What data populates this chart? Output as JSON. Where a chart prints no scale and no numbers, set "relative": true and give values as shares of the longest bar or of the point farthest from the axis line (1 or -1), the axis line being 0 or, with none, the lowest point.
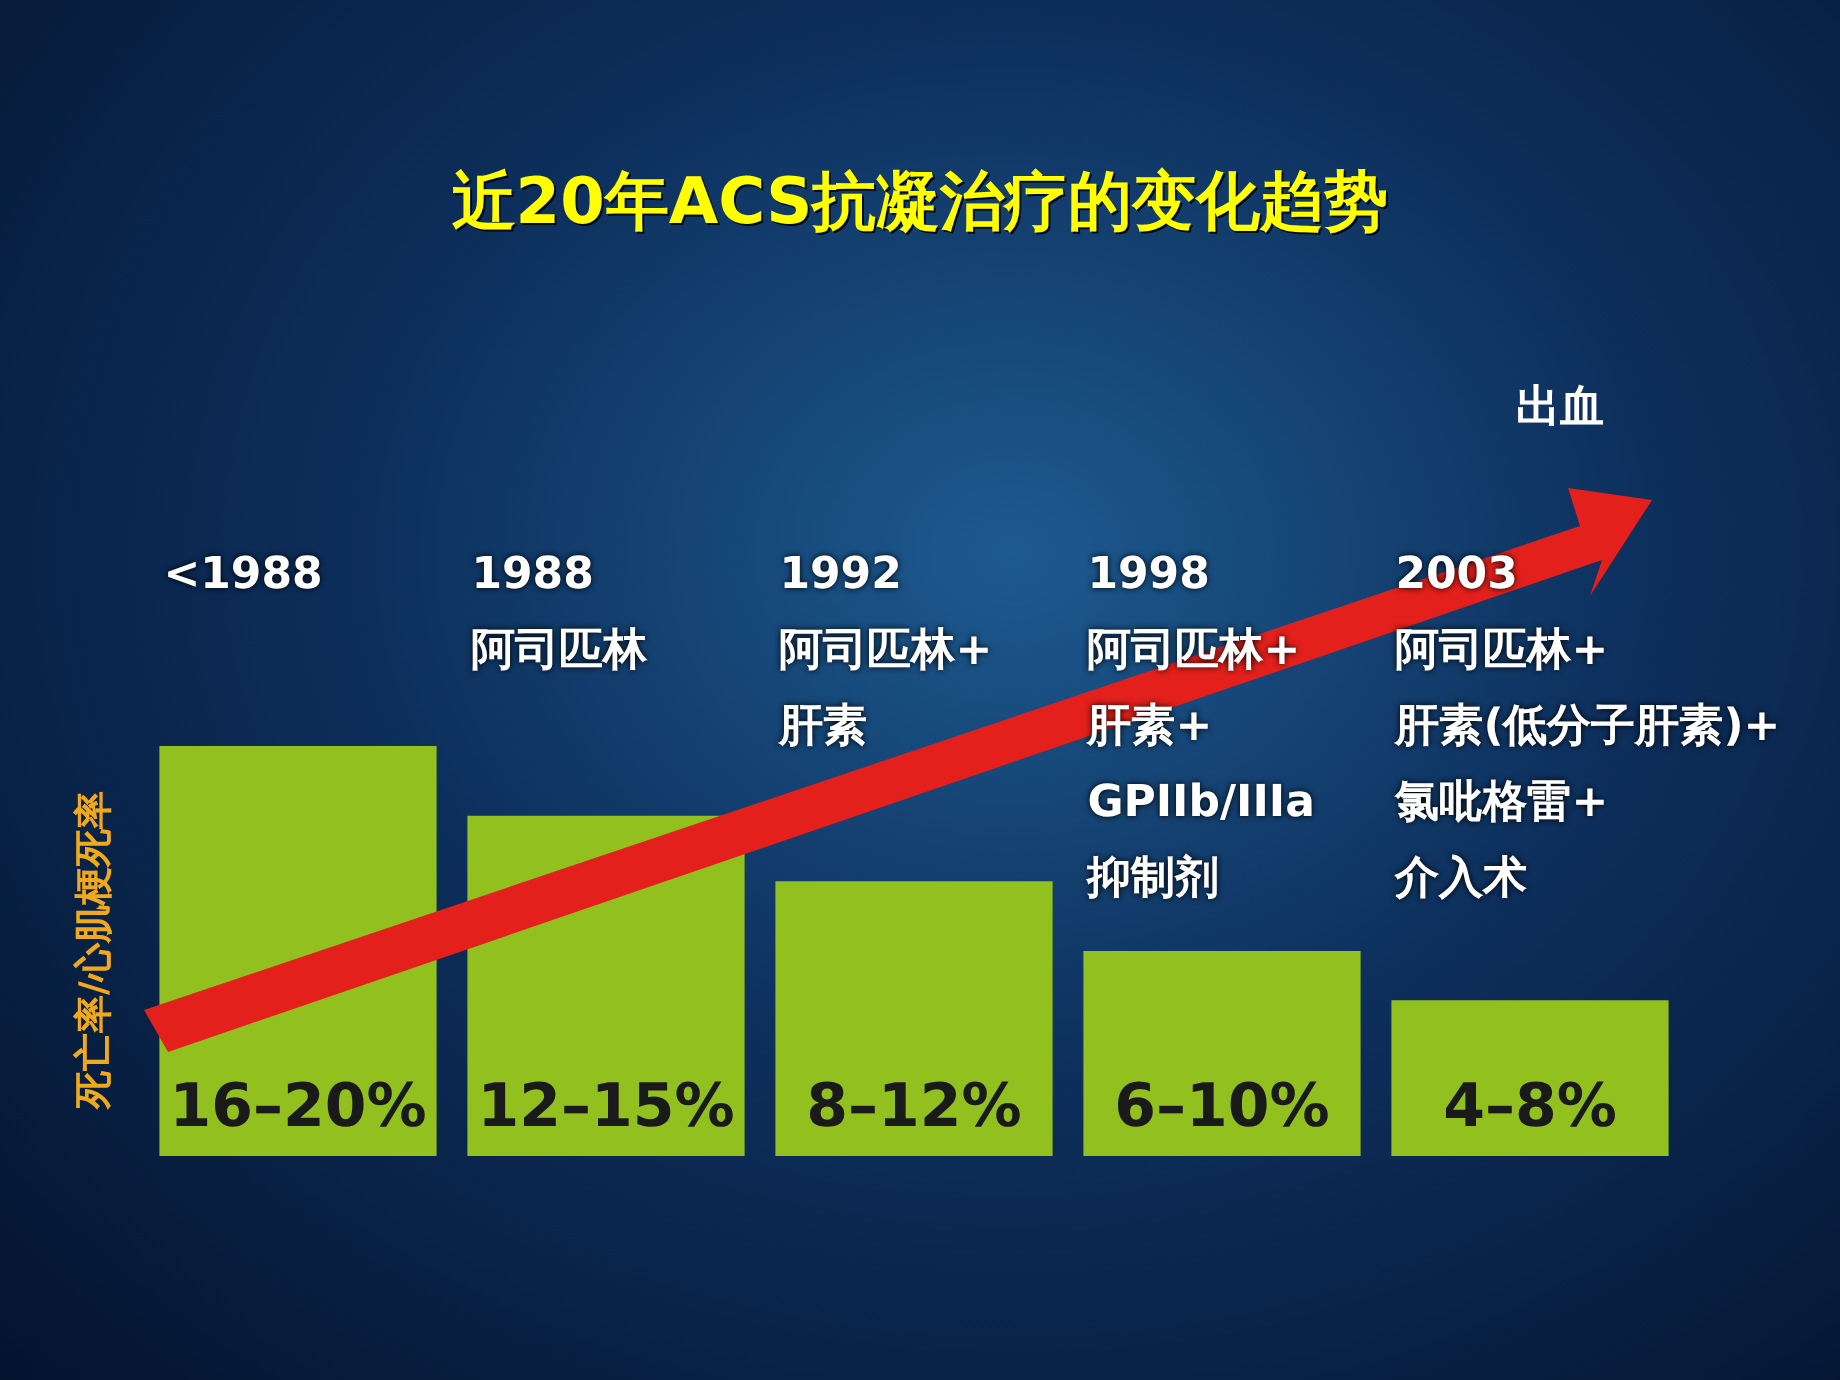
{
  "chart_data": {
    "type": "bar",
    "title": "近20年ACS抗凝治疗的变化趋势",
    "ylabel": "死亡率/心肌梗死率",
    "categories": [
      "<1988\n",
      "1988\n阿司匹林",
      "1992\n阿司匹林+\n肝素",
      "1998\n阿司匹林+\n肝素+\nGPIIb/IIIa\n抑制剂",
      "2003\n阿司匹林+\n肝素(低分子肝素)+\n氯吡格雷+\n介入术"
    ],
    "values": [
      1,
      0.83,
      0.67,
      0.5,
      0.38
    ],
    "relative": true,
    "color": "#92c01f",
    "annotations": [
      "16–20%",
      "12–15%",
      "8–12%",
      "6–10%",
      "4–8%",
      "出血"
    ]
  }
}
